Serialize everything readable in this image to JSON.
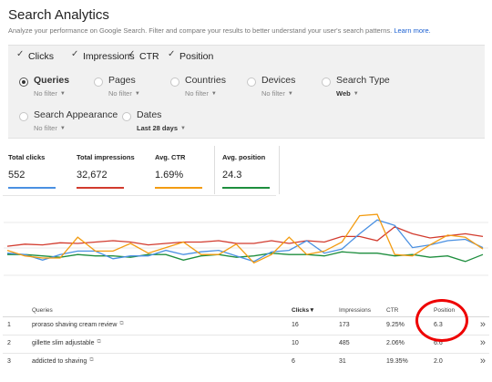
{
  "header": {
    "title": "Search Analytics",
    "subtitle": "Analyze your performance on Google Search. Filter and compare your results to better understand your user's search patterns.",
    "learn_more": "Learn more."
  },
  "metrics": [
    {
      "label": "Clicks",
      "checked": true
    },
    {
      "label": "Impressions",
      "checked": true
    },
    {
      "label": "CTR",
      "checked": true
    },
    {
      "label": "Position",
      "checked": true
    }
  ],
  "filters": {
    "queries": {
      "label": "Queries",
      "sub": "No filter",
      "selected": true
    },
    "pages": {
      "label": "Pages",
      "sub": "No filter"
    },
    "countries": {
      "label": "Countries",
      "sub": "No filter"
    },
    "devices": {
      "label": "Devices",
      "sub": "No filter"
    },
    "search_type": {
      "label": "Search Type",
      "sub": "Web"
    },
    "search_appearance": {
      "label": "Search Appearance",
      "sub": "No filter"
    },
    "dates": {
      "label": "Dates",
      "sub": "Last 28 days"
    }
  },
  "stats": {
    "clicks": {
      "label": "Total clicks",
      "value": "552",
      "color": "#4a90e2"
    },
    "impressions": {
      "label": "Total impressions",
      "value": "32,672",
      "color": "#d23b2e"
    },
    "ctr": {
      "label": "Avg. CTR",
      "value": "1.69%",
      "color": "#f39c12"
    },
    "position": {
      "label": "Avg. position",
      "value": "24.3",
      "color": "#1e8e3e"
    }
  },
  "chart_data": {
    "type": "line",
    "x": [
      1,
      2,
      3,
      4,
      5,
      6,
      7,
      8,
      9,
      10,
      11,
      12,
      13,
      14,
      15,
      16,
      17,
      18,
      19,
      20,
      21,
      22,
      23,
      24,
      25,
      26,
      27,
      28
    ],
    "series": [
      {
        "name": "Clicks",
        "color": "#4a90e2",
        "values": [
          0.32,
          0.3,
          0.22,
          0.3,
          0.35,
          0.35,
          0.24,
          0.28,
          0.28,
          0.36,
          0.3,
          0.34,
          0.36,
          0.28,
          0.2,
          0.34,
          0.36,
          0.5,
          0.32,
          0.38,
          0.6,
          0.8,
          0.72,
          0.4,
          0.44,
          0.5,
          0.52,
          0.4
        ]
      },
      {
        "name": "Impressions",
        "color": "#d23b2e",
        "values": [
          0.42,
          0.45,
          0.44,
          0.47,
          0.46,
          0.48,
          0.5,
          0.48,
          0.44,
          0.46,
          0.48,
          0.48,
          0.5,
          0.46,
          0.46,
          0.5,
          0.46,
          0.5,
          0.48,
          0.56,
          0.56,
          0.5,
          0.7,
          0.6,
          0.54,
          0.57,
          0.6,
          0.56
        ]
      },
      {
        "name": "CTR",
        "color": "#f39c12",
        "values": [
          0.36,
          0.28,
          0.25,
          0.25,
          0.55,
          0.35,
          0.35,
          0.46,
          0.32,
          0.4,
          0.48,
          0.3,
          0.3,
          0.45,
          0.18,
          0.3,
          0.55,
          0.3,
          0.35,
          0.48,
          0.86,
          0.88,
          0.3,
          0.28,
          0.44,
          0.58,
          0.55,
          0.38
        ]
      },
      {
        "name": "Position",
        "color": "#1e8e3e",
        "values": [
          0.3,
          0.3,
          0.28,
          0.26,
          0.3,
          0.28,
          0.28,
          0.26,
          0.3,
          0.3,
          0.22,
          0.28,
          0.3,
          0.26,
          0.28,
          0.32,
          0.3,
          0.3,
          0.28,
          0.34,
          0.32,
          0.32,
          0.28,
          0.3,
          0.26,
          0.28,
          0.2,
          0.3
        ]
      }
    ]
  },
  "table": {
    "headers": {
      "queries": "Queries",
      "clicks": "Clicks",
      "impressions": "Impressions",
      "ctr": "CTR",
      "position": "Position"
    },
    "rows": [
      {
        "num": "1",
        "query": "proraso shaving cream review",
        "clicks": "16",
        "impressions": "173",
        "ctr": "9.25%",
        "position": "6.3"
      },
      {
        "num": "2",
        "query": "gillette slim adjustable",
        "clicks": "10",
        "impressions": "485",
        "ctr": "2.06%",
        "position": "6.6"
      },
      {
        "num": "3",
        "query": "addicted to shaving",
        "clicks": "6",
        "impressions": "31",
        "ctr": "19.35%",
        "position": "2.0"
      }
    ]
  }
}
